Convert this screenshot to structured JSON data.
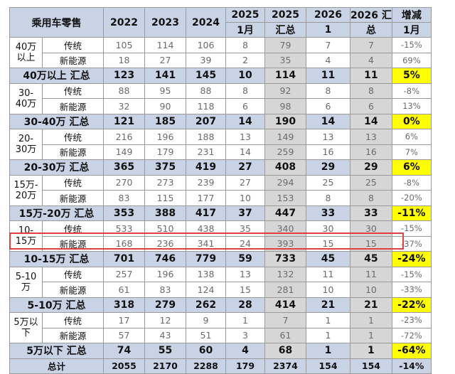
{
  "header": {
    "title": "乘用车零售",
    "y2022": "2022",
    "y2023": "2023",
    "y2024": "2024",
    "y2025": "2025",
    "m2025": "1月",
    "t2025": "2025",
    "t2025b": "汇总",
    "y2026": "2026",
    "m2026": "1",
    "t2026": "2026 汇",
    "t2026b": "总",
    "chg": "增减",
    "chgm": "1月"
  },
  "groups": [
    {
      "segment": [
        "40万",
        "以上"
      ],
      "rows": [
        {
          "type": "传统",
          "v": [
            "105",
            "114",
            "106",
            "8",
            "79",
            "7",
            "7",
            "-15%"
          ]
        },
        {
          "type": "新能源",
          "v": [
            "18",
            "27",
            "39",
            "2",
            "35",
            "4",
            "4",
            "69%"
          ]
        }
      ],
      "subtotal": {
        "label": "40万以上 汇总",
        "v": [
          "123",
          "141",
          "145",
          "10",
          "114",
          "11",
          "11",
          "5%"
        ]
      }
    },
    {
      "segment": [
        "30-",
        "40万"
      ],
      "rows": [
        {
          "type": "传统",
          "v": [
            "88",
            "95",
            "88",
            "8",
            "92",
            "8",
            "8",
            "-8%"
          ]
        },
        {
          "type": "新能源",
          "v": [
            "32",
            "90",
            "118",
            "6",
            "98",
            "6",
            "6",
            "13%"
          ]
        }
      ],
      "subtotal": {
        "label": "30-40万 汇总",
        "v": [
          "121",
          "185",
          "207",
          "14",
          "190",
          "14",
          "14",
          "0%"
        ]
      }
    },
    {
      "segment": [
        "20-",
        "30万"
      ],
      "rows": [
        {
          "type": "传统",
          "v": [
            "216",
            "196",
            "188",
            "13",
            "149",
            "13",
            "13",
            "6%"
          ]
        },
        {
          "type": "新能源",
          "v": [
            "149",
            "179",
            "231",
            "14",
            "259",
            "16",
            "16",
            "7%"
          ]
        }
      ],
      "subtotal": {
        "label": "20-30万 汇总",
        "v": [
          "365",
          "375",
          "419",
          "27",
          "408",
          "29",
          "29",
          "6%"
        ]
      }
    },
    {
      "segment": [
        "15万-",
        "20万"
      ],
      "rows": [
        {
          "type": "传统",
          "v": [
            "270",
            "273",
            "239",
            "27",
            "294",
            "25",
            "25",
            "-8%"
          ]
        },
        {
          "type": "新能源",
          "v": [
            "83",
            "115",
            "177",
            "10",
            "153",
            "8",
            "8",
            "-20%"
          ]
        }
      ],
      "subtotal": {
        "label": "15万-20万 汇总",
        "v": [
          "353",
          "388",
          "417",
          "37",
          "447",
          "33",
          "33",
          "-11%"
        ]
      }
    },
    {
      "segment": [
        "10-",
        "15万"
      ],
      "rows": [
        {
          "type": "传统",
          "v": [
            "533",
            "510",
            "438",
            "35",
            "340",
            "30",
            "30",
            "-15%"
          ]
        },
        {
          "type": "新能源",
          "v": [
            "168",
            "236",
            "341",
            "24",
            "393",
            "15",
            "15",
            "-37%"
          ]
        }
      ],
      "subtotal": {
        "label": "10-15万 汇总",
        "v": [
          "701",
          "746",
          "779",
          "59",
          "733",
          "45",
          "45",
          "-24%"
        ]
      }
    },
    {
      "segment": [
        "5-10",
        "万"
      ],
      "rows": [
        {
          "type": "传统",
          "v": [
            "257",
            "196",
            "138",
            "13",
            "132",
            "11",
            "11",
            "-15%"
          ]
        },
        {
          "type": "新能源",
          "v": [
            "61",
            "83",
            "124",
            "15",
            "281",
            "10",
            "10",
            "-33%"
          ]
        }
      ],
      "subtotal": {
        "label": "5-10万 汇总",
        "v": [
          "318",
          "279",
          "262",
          "28",
          "414",
          "21",
          "21",
          "-22%"
        ]
      }
    },
    {
      "segment": [
        "5万以",
        "下"
      ],
      "rows": [
        {
          "type": "传统",
          "v": [
            "17",
            "12",
            "9",
            "1",
            "7",
            "1",
            "1",
            "-23%"
          ]
        },
        {
          "type": "新能源",
          "v": [
            "57",
            "43",
            "51",
            "3",
            "61",
            "1",
            "1",
            "-72%"
          ]
        }
      ],
      "subtotal": {
        "label": "5万以下 汇总",
        "v": [
          "74",
          "55",
          "60",
          "4",
          "68",
          "1",
          "1",
          "-64%"
        ]
      }
    }
  ],
  "total": {
    "label": "总计",
    "v": [
      "2055",
      "2170",
      "2288",
      "179",
      "2374",
      "154",
      "154",
      "-14%"
    ]
  },
  "colors": {
    "header_bg": "#c9d3e6",
    "highlight_yellow": "#ffff00",
    "gray_col": "#d6d6d6",
    "highlight_border": "#e04040"
  }
}
